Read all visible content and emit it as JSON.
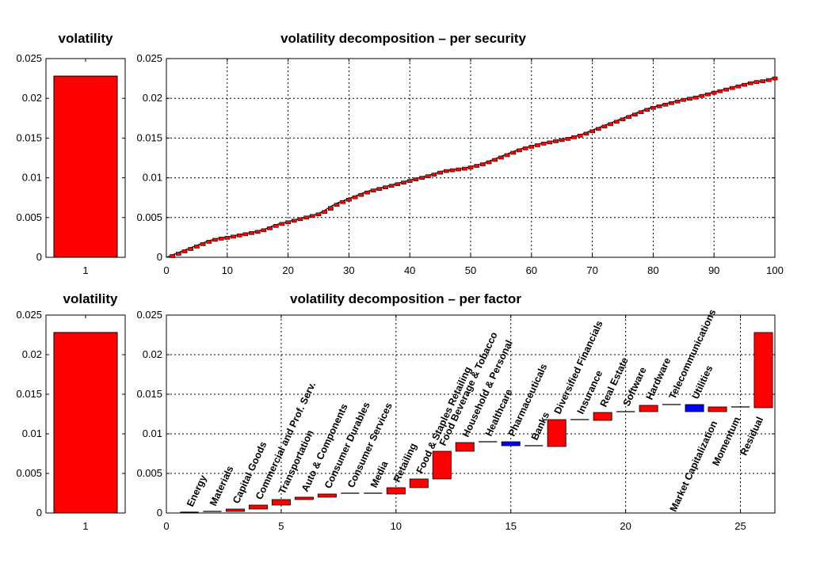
{
  "colors": {
    "positive": "#ff0000",
    "negative": "#0000ff",
    "edge": "#000000",
    "background": "#ffffff"
  },
  "chart_data": [
    {
      "id": "vol_top",
      "type": "bar",
      "title": "volatility",
      "categories": [
        "1"
      ],
      "values": [
        0.0228
      ],
      "xlabel": "",
      "ylabel": "",
      "ylim": [
        0,
        0.025
      ],
      "yticks": [
        "0",
        "0.005",
        "0.01",
        "0.015",
        "0.02",
        "0.025"
      ],
      "grid": false
    },
    {
      "id": "per_security",
      "type": "bar",
      "title": "volatility decomposition – per security",
      "xlabel": "",
      "ylabel": "",
      "xlim": [
        0,
        100
      ],
      "ylim": [
        0,
        0.025
      ],
      "xticks": [
        "0",
        "10",
        "20",
        "30",
        "40",
        "50",
        "60",
        "70",
        "80",
        "90",
        "100"
      ],
      "yticks": [
        "0",
        "0.005",
        "0.01",
        "0.015",
        "0.02",
        "0.025"
      ],
      "grid": true,
      "style": "waterfall",
      "cumulative": [
        0,
        0.0003,
        0.0006,
        0.0009,
        0.0012,
        0.0015,
        0.0018,
        0.0021,
        0.0023,
        0.0024,
        0.0025,
        0.0027,
        0.0028,
        0.003,
        0.0031,
        0.0033,
        0.0035,
        0.0038,
        0.0041,
        0.0043,
        0.0045,
        0.0047,
        0.0049,
        0.0051,
        0.0053,
        0.0055,
        0.0059,
        0.0064,
        0.0068,
        0.0071,
        0.0074,
        0.0077,
        0.008,
        0.0083,
        0.0085,
        0.0087,
        0.0089,
        0.0091,
        0.0093,
        0.0095,
        0.0097,
        0.0099,
        0.0101,
        0.0103,
        0.0105,
        0.0108,
        0.0109,
        0.011,
        0.0111,
        0.0112,
        0.0114,
        0.0116,
        0.0118,
        0.0121,
        0.0124,
        0.0127,
        0.013,
        0.0133,
        0.0136,
        0.0138,
        0.014,
        0.0142,
        0.0144,
        0.0145,
        0.0147,
        0.0148,
        0.015,
        0.0152,
        0.0154,
        0.0157,
        0.016,
        0.0163,
        0.0166,
        0.0169,
        0.0172,
        0.0175,
        0.0178,
        0.0181,
        0.0184,
        0.0187,
        0.0189,
        0.0191,
        0.0193,
        0.0195,
        0.0197,
        0.0199,
        0.02,
        0.0202,
        0.0204,
        0.0206,
        0.0208,
        0.021,
        0.0212,
        0.0214,
        0.0216,
        0.0218,
        0.022,
        0.0221,
        0.0222,
        0.0224,
        0.0226
      ]
    },
    {
      "id": "vol_bottom",
      "type": "bar",
      "title": "volatility",
      "categories": [
        "1"
      ],
      "values": [
        0.0228
      ],
      "xlabel": "",
      "ylabel": "",
      "ylim": [
        0,
        0.025
      ],
      "yticks": [
        "0",
        "0.005",
        "0.01",
        "0.015",
        "0.02",
        "0.025"
      ],
      "grid": false
    },
    {
      "id": "per_factor",
      "type": "bar",
      "title": "volatility decomposition – per factor",
      "xlabel": "",
      "ylabel": "",
      "xlim": [
        0,
        26.5
      ],
      "ylim": [
        0,
        0.025
      ],
      "xticks": [
        "0",
        "5",
        "10",
        "15",
        "20",
        "25"
      ],
      "yticks": [
        "0",
        "0.005",
        "0.01",
        "0.015",
        "0.02",
        "0.025"
      ],
      "grid": true,
      "style": "waterfall",
      "factors": [
        {
          "name": "Energy",
          "start": 0,
          "end": 0.0001
        },
        {
          "name": "Materials",
          "start": 0.0001,
          "end": 0.0002
        },
        {
          "name": "Capital Goods",
          "start": 0.0002,
          "end": 0.0005
        },
        {
          "name": "Commercial and Prof. Serv.",
          "start": 0.0005,
          "end": 0.001
        },
        {
          "name": "Transportation",
          "start": 0.001,
          "end": 0.0017
        },
        {
          "name": "Auto & Components",
          "start": 0.0017,
          "end": 0.002
        },
        {
          "name": "Consumer Durables",
          "start": 0.002,
          "end": 0.0024
        },
        {
          "name": "Consumer Services",
          "start": 0.0024,
          "end": 0.0025
        },
        {
          "name": "Media",
          "start": 0.0025,
          "end": 0.0024
        },
        {
          "name": "Retailing",
          "start": 0.0024,
          "end": 0.0032
        },
        {
          "name": "Food & Staples Retailing",
          "start": 0.0032,
          "end": 0.0043
        },
        {
          "name": "Food Beverage & Tobacco",
          "start": 0.0043,
          "end": 0.0078
        },
        {
          "name": "Household & Personal",
          "start": 0.0078,
          "end": 0.0089
        },
        {
          "name": "Healthcare",
          "start": 0.0089,
          "end": 0.009
        },
        {
          "name": "Pharmaceuticals",
          "start": 0.009,
          "end": 0.0085
        },
        {
          "name": "Banks",
          "start": 0.0085,
          "end": 0.0084
        },
        {
          "name": "Diversified Financials",
          "start": 0.0084,
          "end": 0.0118
        },
        {
          "name": "Insurance",
          "start": 0.0118,
          "end": 0.0117
        },
        {
          "name": "Real Estate",
          "start": 0.0117,
          "end": 0.0127
        },
        {
          "name": "Software",
          "start": 0.0127,
          "end": 0.0128
        },
        {
          "name": "Hardware",
          "start": 0.0128,
          "end": 0.0136
        },
        {
          "name": "Telecommunications",
          "start": 0.0136,
          "end": 0.0137
        },
        {
          "name": "Utilities",
          "start": 0.0137,
          "end": 0.0128
        },
        {
          "name": "Market Capitalization",
          "start": 0.0128,
          "end": 0.0134
        },
        {
          "name": "Momentum",
          "start": 0.0134,
          "end": 0.0133
        },
        {
          "name": "Residual",
          "start": 0.0133,
          "end": 0.0228
        }
      ]
    }
  ]
}
